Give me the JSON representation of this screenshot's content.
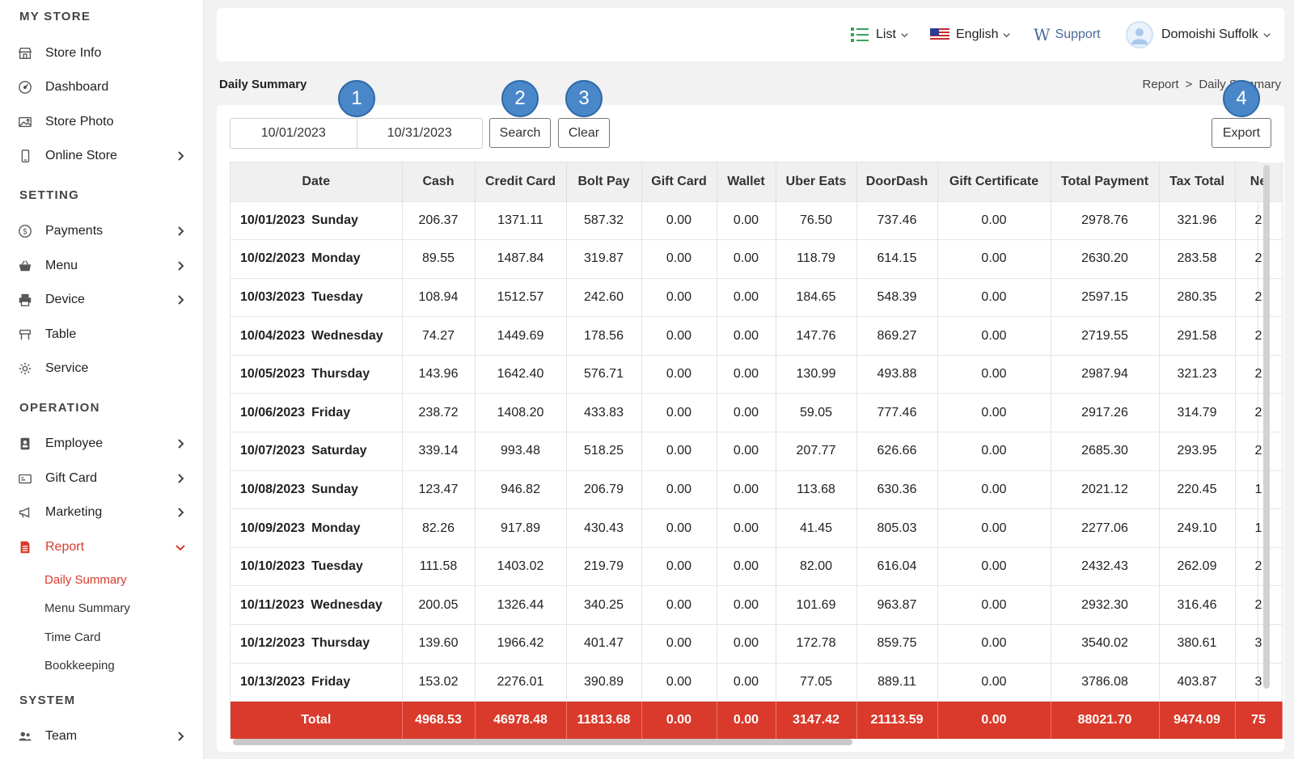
{
  "sidebar": {
    "sections": [
      {
        "title": "MY STORE"
      },
      {
        "title": "SETTING"
      },
      {
        "title": "OPERATION"
      },
      {
        "title": "SYSTEM"
      }
    ],
    "items": [
      {
        "label": "Store Info",
        "icon": "store-icon"
      },
      {
        "label": "Dashboard",
        "icon": "dashboard-icon"
      },
      {
        "label": "Store Photo",
        "icon": "photo-icon"
      },
      {
        "label": "Online Store",
        "icon": "phone-icon"
      },
      {
        "label": "Payments",
        "icon": "dollar-icon"
      },
      {
        "label": "Menu",
        "icon": "basket-icon"
      },
      {
        "label": "Device",
        "icon": "printer-icon"
      },
      {
        "label": "Table",
        "icon": "table-icon"
      },
      {
        "label": "Service",
        "icon": "gear-icon"
      },
      {
        "label": "Employee",
        "icon": "badge-icon"
      },
      {
        "label": "Gift Card",
        "icon": "gift-card-icon"
      },
      {
        "label": "Marketing",
        "icon": "megaphone-icon"
      },
      {
        "label": "Report",
        "icon": "report-icon"
      },
      {
        "label": "Team",
        "icon": "team-icon"
      }
    ],
    "report_sub": [
      "Daily Summary",
      "Menu Summary",
      "Time Card",
      "Bookkeeping"
    ]
  },
  "header": {
    "list_label": "List",
    "language_label": "English",
    "support_label": "Support",
    "user_name": "Domoishi Suffolk"
  },
  "page": {
    "title": "Daily Summary",
    "breadcrumb": [
      "Report",
      ">",
      "Daily Summary"
    ]
  },
  "filters": {
    "start_date": "10/01/2023",
    "end_date": "10/31/2023",
    "search_label": "Search",
    "clear_label": "Clear",
    "export_label": "Export"
  },
  "bubbles": [
    "1",
    "2",
    "3",
    "4"
  ],
  "table": {
    "columns": [
      "Date",
      "Cash",
      "Credit Card",
      "Bolt Pay",
      "Gift Card",
      "Wallet",
      "Uber Eats",
      "DoorDash",
      "Gift Certificate",
      "Total Payment",
      "Tax Total",
      "Ne"
    ],
    "rows": [
      {
        "date": "10/01/2023",
        "day": "Sunday",
        "values": [
          "206.37",
          "1371.11",
          "587.32",
          "0.00",
          "0.00",
          "76.50",
          "737.46",
          "0.00",
          "2978.76",
          "321.96",
          "2"
        ]
      },
      {
        "date": "10/02/2023",
        "day": "Monday",
        "values": [
          "89.55",
          "1487.84",
          "319.87",
          "0.00",
          "0.00",
          "118.79",
          "614.15",
          "0.00",
          "2630.20",
          "283.58",
          "2"
        ]
      },
      {
        "date": "10/03/2023",
        "day": "Tuesday",
        "values": [
          "108.94",
          "1512.57",
          "242.60",
          "0.00",
          "0.00",
          "184.65",
          "548.39",
          "0.00",
          "2597.15",
          "280.35",
          "2"
        ]
      },
      {
        "date": "10/04/2023",
        "day": "Wednesday",
        "values": [
          "74.27",
          "1449.69",
          "178.56",
          "0.00",
          "0.00",
          "147.76",
          "869.27",
          "0.00",
          "2719.55",
          "291.58",
          "2"
        ]
      },
      {
        "date": "10/05/2023",
        "day": "Thursday",
        "values": [
          "143.96",
          "1642.40",
          "576.71",
          "0.00",
          "0.00",
          "130.99",
          "493.88",
          "0.00",
          "2987.94",
          "321.23",
          "2"
        ]
      },
      {
        "date": "10/06/2023",
        "day": "Friday",
        "values": [
          "238.72",
          "1408.20",
          "433.83",
          "0.00",
          "0.00",
          "59.05",
          "777.46",
          "0.00",
          "2917.26",
          "314.79",
          "2"
        ]
      },
      {
        "date": "10/07/2023",
        "day": "Saturday",
        "values": [
          "339.14",
          "993.48",
          "518.25",
          "0.00",
          "0.00",
          "207.77",
          "626.66",
          "0.00",
          "2685.30",
          "293.95",
          "2"
        ]
      },
      {
        "date": "10/08/2023",
        "day": "Sunday",
        "values": [
          "123.47",
          "946.82",
          "206.79",
          "0.00",
          "0.00",
          "113.68",
          "630.36",
          "0.00",
          "2021.12",
          "220.45",
          "1"
        ]
      },
      {
        "date": "10/09/2023",
        "day": "Monday",
        "values": [
          "82.26",
          "917.89",
          "430.43",
          "0.00",
          "0.00",
          "41.45",
          "805.03",
          "0.00",
          "2277.06",
          "249.10",
          "1"
        ]
      },
      {
        "date": "10/10/2023",
        "day": "Tuesday",
        "values": [
          "111.58",
          "1403.02",
          "219.79",
          "0.00",
          "0.00",
          "82.00",
          "616.04",
          "0.00",
          "2432.43",
          "262.09",
          "2"
        ]
      },
      {
        "date": "10/11/2023",
        "day": "Wednesday",
        "values": [
          "200.05",
          "1326.44",
          "340.25",
          "0.00",
          "0.00",
          "101.69",
          "963.87",
          "0.00",
          "2932.30",
          "316.46",
          "2"
        ]
      },
      {
        "date": "10/12/2023",
        "day": "Thursday",
        "values": [
          "139.60",
          "1966.42",
          "401.47",
          "0.00",
          "0.00",
          "172.78",
          "859.75",
          "0.00",
          "3540.02",
          "380.61",
          "3"
        ]
      },
      {
        "date": "10/13/2023",
        "day": "Friday",
        "values": [
          "153.02",
          "2276.01",
          "390.89",
          "0.00",
          "0.00",
          "77.05",
          "889.11",
          "0.00",
          "3786.08",
          "403.87",
          "3"
        ]
      }
    ],
    "total": {
      "label": "Total",
      "values": [
        "4968.53",
        "46978.48",
        "11813.68",
        "0.00",
        "0.00",
        "3147.42",
        "21113.59",
        "0.00",
        "88021.70",
        "9474.09",
        "75"
      ]
    }
  },
  "colors": {
    "accent": "#d93a2b",
    "bubble": "#4a87c9"
  }
}
